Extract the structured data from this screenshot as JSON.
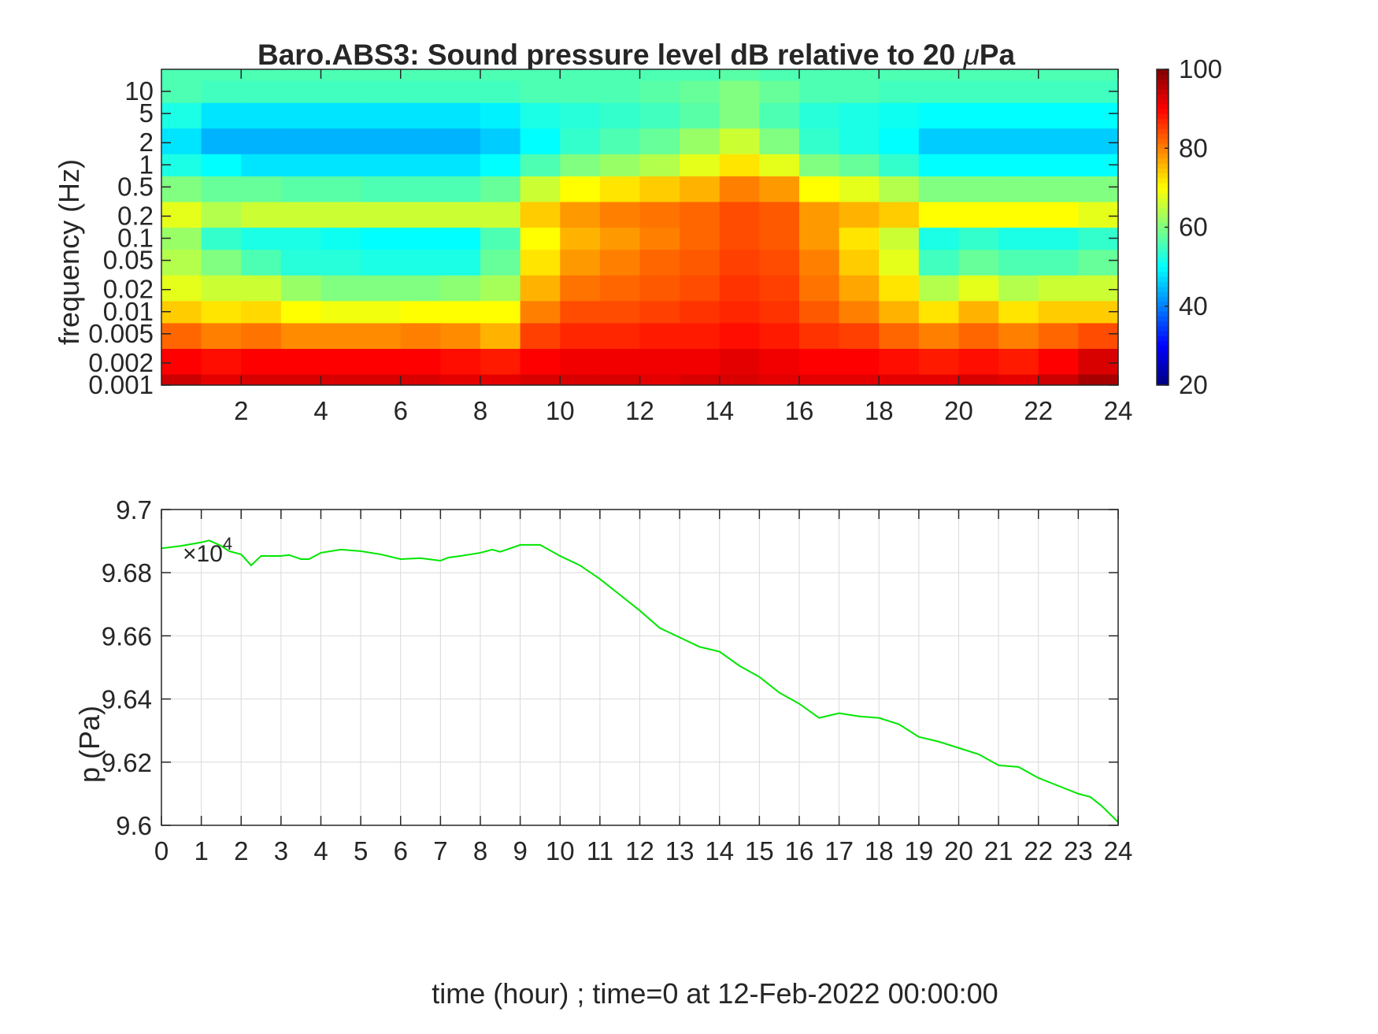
{
  "figure": {
    "background": "#ffffff"
  },
  "chart_data": [
    {
      "type": "heatmap",
      "title": "Baro.ABS3: Sound pressure level dB relative to 20 μPa",
      "title_prefix": "Baro.ABS3: Sound pressure level dB relative to 20 ",
      "title_mu": "μ",
      "title_suffix": "Pa",
      "xlabel": "",
      "ylabel": "frequency (Hz)",
      "x_scale": "linear",
      "y_scale": "log",
      "xlim": [
        0,
        24
      ],
      "ylim": [
        0.001,
        20
      ],
      "xticks": [
        2,
        4,
        6,
        8,
        10,
        12,
        14,
        16,
        18,
        20,
        22,
        24
      ],
      "xtick_labels": [
        "2",
        "4",
        "6",
        "8",
        "10",
        "12",
        "14",
        "16",
        "18",
        "20",
        "22",
        "24"
      ],
      "yticks": [
        0.001,
        0.002,
        0.005,
        0.01,
        0.02,
        0.05,
        0.1,
        0.2,
        0.5,
        1,
        2,
        5,
        10
      ],
      "ytick_labels": [
        "0.001",
        "0.002",
        "0.005",
        "0.01",
        "0.02",
        "0.05",
        "0.1",
        "0.2",
        "0.5",
        "1",
        "2",
        "5",
        "10"
      ],
      "colormap": "jet",
      "colorbar": {
        "range": [
          20,
          100
        ],
        "ticks": [
          20,
          40,
          60,
          80,
          100
        ],
        "tick_labels": [
          "20",
          "40",
          "60",
          "80",
          "100"
        ],
        "label": ""
      },
      "time_hours": [
        0.5,
        1.5,
        2.5,
        3.5,
        4.5,
        5.5,
        6.5,
        7.5,
        8.5,
        9.5,
        10.5,
        11.5,
        12.5,
        13.5,
        14.5,
        15.5,
        16.5,
        17.5,
        18.5,
        19.5,
        20.5,
        21.5,
        22.5,
        23.5
      ],
      "frequencies_hz": [
        0.001,
        0.002,
        0.005,
        0.01,
        0.02,
        0.05,
        0.1,
        0.2,
        0.5,
        1,
        2,
        5,
        10,
        20
      ],
      "levels_db": [
        [
          94,
          90,
          82,
          74,
          68,
          64,
          62,
          68,
          60,
          52,
          48,
          52,
          56,
          56
        ],
        [
          92,
          89,
          80,
          72,
          66,
          60,
          54,
          64,
          58,
          50,
          44,
          48,
          55,
          56
        ],
        [
          93,
          90,
          81,
          73,
          66,
          56,
          52,
          66,
          58,
          48,
          44,
          48,
          55,
          56
        ],
        [
          93,
          90,
          79,
          70,
          62,
          53,
          52,
          66,
          57,
          48,
          44,
          48,
          55,
          56
        ],
        [
          93,
          90,
          79,
          69,
          60,
          53,
          51,
          66,
          57,
          48,
          44,
          48,
          55,
          56
        ],
        [
          93,
          90,
          79,
          69,
          60,
          52,
          50,
          66,
          56,
          48,
          44,
          48,
          55,
          56
        ],
        [
          93,
          90,
          80,
          70,
          60,
          52,
          50,
          66,
          56,
          48,
          44,
          48,
          55,
          56
        ],
        [
          92,
          89,
          79,
          70,
          61,
          52,
          50,
          66,
          56,
          48,
          44,
          48,
          55,
          56
        ],
        [
          92,
          88,
          76,
          70,
          63,
          58,
          56,
          66,
          58,
          50,
          46,
          49,
          55,
          56
        ],
        [
          93,
          90,
          85,
          80,
          76,
          72,
          70,
          74,
          66,
          56,
          50,
          52,
          56,
          56
        ],
        [
          93,
          91,
          87,
          84,
          81,
          78,
          76,
          78,
          70,
          60,
          54,
          53,
          56,
          56
        ],
        [
          93,
          91,
          87,
          84,
          82,
          80,
          78,
          80,
          72,
          62,
          56,
          54,
          56,
          56
        ],
        [
          92,
          91,
          88,
          85,
          83,
          82,
          80,
          81,
          74,
          64,
          58,
          55,
          57,
          56
        ],
        [
          93,
          91,
          88,
          86,
          84,
          83,
          82,
          82,
          76,
          68,
          62,
          57,
          58,
          56
        ],
        [
          93,
          92,
          89,
          87,
          86,
          85,
          84,
          84,
          80,
          72,
          66,
          60,
          60,
          57
        ],
        [
          92,
          91,
          88,
          86,
          85,
          84,
          83,
          83,
          78,
          68,
          60,
          56,
          58,
          56
        ],
        [
          92,
          90,
          86,
          83,
          81,
          80,
          78,
          78,
          70,
          60,
          54,
          53,
          56,
          56
        ],
        [
          92,
          90,
          85,
          80,
          77,
          74,
          72,
          76,
          68,
          58,
          52,
          52,
          56,
          56
        ],
        [
          92,
          89,
          82,
          76,
          72,
          68,
          66,
          74,
          64,
          54,
          50,
          51,
          55,
          56
        ],
        [
          92,
          88,
          80,
          72,
          64,
          55,
          52,
          70,
          60,
          50,
          46,
          50,
          55,
          56
        ],
        [
          93,
          89,
          82,
          76,
          68,
          58,
          54,
          70,
          60,
          50,
          46,
          50,
          55,
          56
        ],
        [
          92,
          88,
          80,
          72,
          64,
          56,
          52,
          70,
          60,
          50,
          46,
          50,
          55,
          56
        ],
        [
          94,
          90,
          82,
          74,
          66,
          56,
          52,
          70,
          60,
          50,
          46,
          50,
          55,
          56
        ],
        [
          97,
          93,
          84,
          74,
          66,
          58,
          54,
          68,
          60,
          50,
          46,
          50,
          55,
          56
        ]
      ]
    },
    {
      "type": "line",
      "title": "",
      "xlabel": "time (hour) ; time=0 at 12-Feb-2022 00:00:00",
      "ylabel": "p (Pa)",
      "xlim": [
        0,
        24
      ],
      "ylim": [
        96000,
        97000
      ],
      "xticks": [
        0,
        1,
        2,
        3,
        4,
        5,
        6,
        7,
        8,
        9,
        10,
        11,
        12,
        13,
        14,
        15,
        16,
        17,
        18,
        19,
        20,
        21,
        22,
        23,
        24
      ],
      "xtick_labels": [
        "0",
        "1",
        "2",
        "3",
        "4",
        "5",
        "6",
        "7",
        "8",
        "9",
        "10",
        "11",
        "12",
        "13",
        "14",
        "15",
        "16",
        "17",
        "18",
        "19",
        "20",
        "21",
        "22",
        "23",
        "24"
      ],
      "yticks": [
        96000,
        96200,
        96400,
        96600,
        96800,
        97000
      ],
      "ytick_labels": [
        "9.6",
        "9.62",
        "9.64",
        "9.66",
        "9.68",
        "9.7"
      ],
      "exponent_label": "×10",
      "exponent_power": "4",
      "grid": true,
      "series": [
        {
          "color": "#00e600",
          "x": [
            0,
            0.5,
            1,
            1.2,
            1.5,
            1.7,
            2,
            2.25,
            2.5,
            3,
            3.2,
            3.5,
            3.7,
            4,
            4.5,
            5,
            5.5,
            6,
            6.5,
            7,
            7.2,
            7.5,
            8,
            8.3,
            8.5,
            9,
            9.5,
            10,
            10.5,
            11,
            11.5,
            12,
            12.5,
            13,
            13.5,
            14,
            14.5,
            15,
            15.5,
            16,
            16.5,
            17,
            17.5,
            18,
            18.5,
            19,
            19.5,
            20,
            20.5,
            21,
            21.5,
            22,
            22.5,
            23,
            23.3,
            23.6,
            24
          ],
          "y": [
            96877,
            96885,
            96896,
            96902,
            96885,
            96868,
            96858,
            96823,
            96853,
            96853,
            96856,
            96843,
            96843,
            96863,
            96873,
            96868,
            96858,
            96843,
            96846,
            96838,
            96848,
            96853,
            96863,
            96873,
            96866,
            96888,
            96888,
            96853,
            96823,
            96780,
            96730,
            96680,
            96625,
            96595,
            96565,
            96550,
            96505,
            96470,
            96420,
            96385,
            96340,
            96355,
            96345,
            96340,
            96320,
            96280,
            96265,
            96245,
            96225,
            96190,
            96185,
            96150,
            96125,
            96100,
            96090,
            96060,
            96010
          ]
        }
      ]
    }
  ]
}
